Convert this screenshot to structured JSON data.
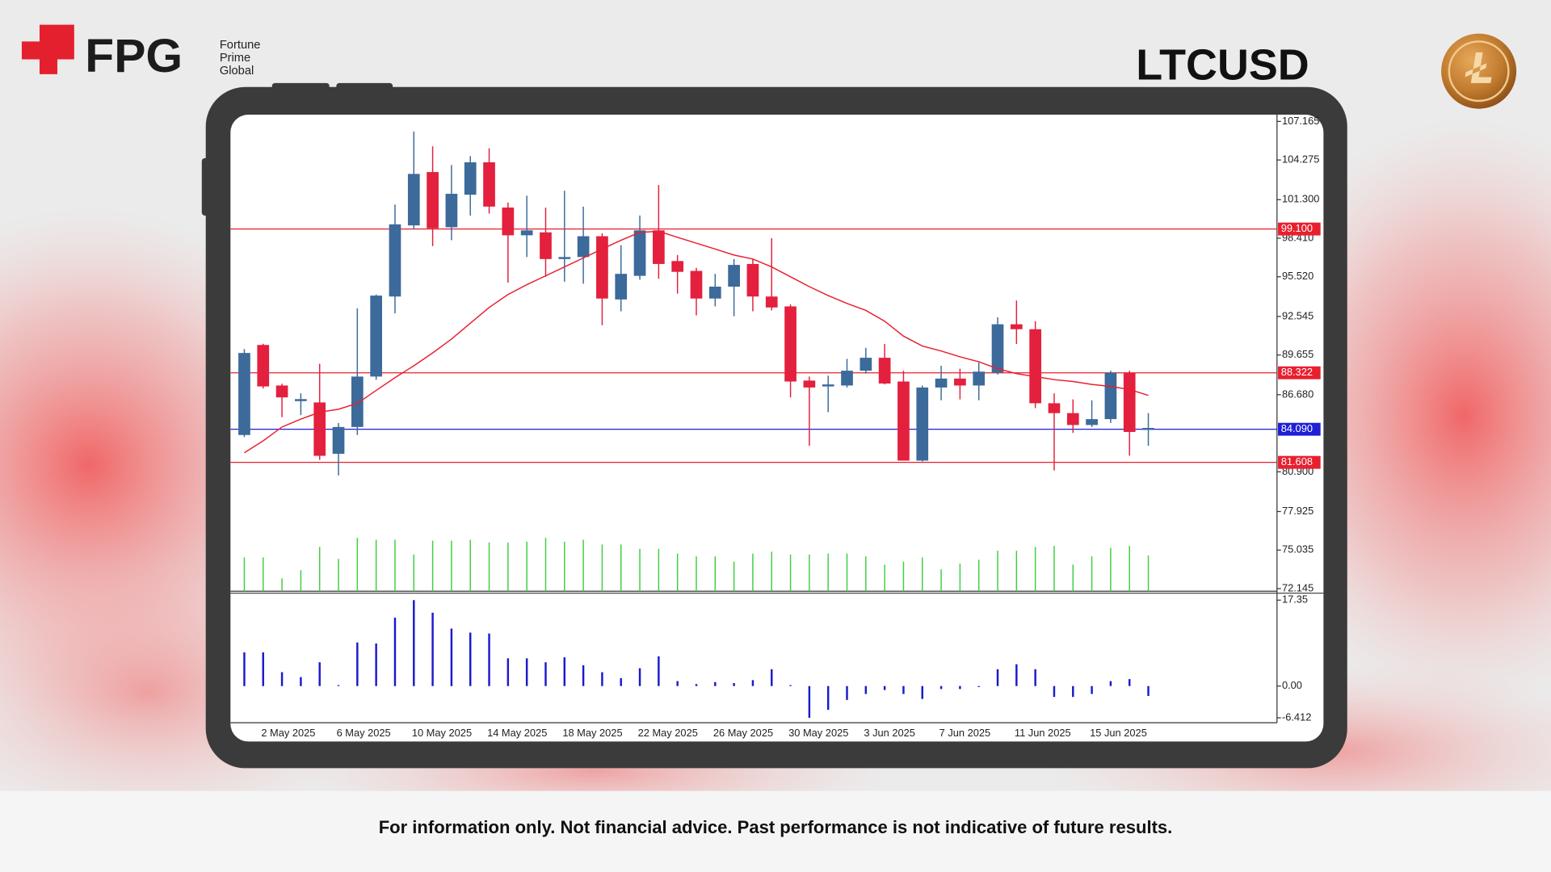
{
  "header": {
    "brand": "FPG",
    "brand_sub": [
      "Fortune",
      "Prime",
      "Global"
    ],
    "symbol": "LTCUSD"
  },
  "chart_data": {
    "type": "candlestick",
    "categories": [
      null,
      "2 May 2025",
      null,
      null,
      null,
      "6 May 2025",
      null,
      null,
      null,
      "10 May 2025",
      null,
      null,
      null,
      "14 May 2025",
      null,
      null,
      null,
      "18 May 2025",
      null,
      null,
      null,
      "22 May 2025",
      null,
      null,
      null,
      "26 May 2025",
      null,
      null,
      null,
      "30 May 2025",
      null,
      null,
      null,
      "3 Jun 2025",
      null,
      null,
      null,
      "7 Jun 2025",
      null,
      null,
      null,
      "11 Jun 2025",
      null,
      null,
      null,
      "15 Jun 2025",
      null,
      null,
      null
    ],
    "open": [
      83.66,
      90.41,
      87.37,
      86.2,
      86.1,
      82.25,
      84.26,
      88.04,
      94.04,
      99.37,
      103.37,
      99.23,
      101.67,
      104.1,
      100.71,
      98.63,
      98.85,
      96.85,
      97.0,
      98.56,
      93.82,
      95.59,
      99.0,
      96.7,
      95.96,
      93.89,
      94.78,
      96.48,
      94.04,
      93.3,
      87.74,
      87.3,
      87.37,
      88.48,
      89.45,
      87.67,
      81.74,
      87.22,
      87.89,
      87.37,
      88.33,
      91.96,
      91.59,
      86.04,
      85.3,
      84.41,
      84.85,
      88.33,
      84.04
    ],
    "high": [
      90.1,
      90.5,
      87.5,
      86.78,
      89.0,
      84.56,
      93.15,
      94.19,
      100.93,
      106.41,
      105.3,
      103.9,
      104.56,
      105.15,
      101.08,
      101.6,
      100.7,
      101.97,
      100.78,
      98.78,
      97.89,
      100.11,
      102.4,
      97.15,
      96.19,
      95.74,
      96.85,
      96.85,
      98.41,
      93.45,
      88.04,
      88.11,
      89.37,
      90.19,
      90.48,
      88.48,
      87.37,
      88.85,
      88.63,
      89.08,
      92.48,
      93.74,
      92.19,
      86.78,
      86.33,
      86.26,
      88.48,
      88.48,
      85.3
    ],
    "low": [
      83.5,
      87.15,
      85.0,
      85.15,
      81.8,
      80.63,
      83.66,
      87.8,
      92.78,
      99.08,
      97.82,
      98.26,
      100.11,
      100.26,
      95.08,
      97.0,
      95.52,
      95.15,
      95.0,
      91.89,
      92.93,
      95.3,
      95.37,
      94.26,
      92.63,
      93.3,
      92.56,
      92.93,
      93.0,
      86.48,
      82.85,
      85.37,
      87.22,
      88.26,
      87.45,
      81.74,
      81.67,
      86.26,
      86.33,
      86.26,
      88.19,
      90.48,
      85.67,
      81.0,
      83.82,
      84.26,
      84.56,
      82.11,
      82.85
    ],
    "close": [
      89.81,
      87.3,
      86.48,
      86.35,
      82.1,
      84.26,
      88.04,
      94.11,
      99.45,
      103.23,
      99.15,
      101.74,
      104.1,
      100.78,
      98.63,
      99.0,
      96.85,
      97.0,
      98.56,
      93.89,
      95.74,
      99.0,
      96.48,
      95.89,
      93.89,
      94.78,
      96.41,
      94.04,
      93.22,
      87.67,
      87.22,
      87.45,
      88.48,
      89.45,
      87.52,
      81.74,
      87.22,
      87.89,
      87.37,
      88.41,
      91.96,
      91.59,
      86.04,
      85.3,
      84.41,
      84.85,
      88.33,
      83.89,
      84.19
    ],
    "up_color": "#3c6a9a",
    "down_color": "#e3203d",
    "ylim": [
      71.95,
      107.67
    ],
    "yticks": [
      107.165,
      104.275,
      {
        "value": 101.3,
        "label": "101.300"
      },
      {
        "value": 98.41,
        "label": "98.410"
      },
      {
        "value": 95.52,
        "label": "95.520"
      },
      92.545,
      89.655,
      {
        "value": 86.68,
        "label": "86.680"
      },
      {
        "value": 80.9,
        "label": "80.900"
      },
      77.925,
      75.035,
      72.145
    ],
    "grid": false,
    "moving_average": {
      "color": "#e8202e",
      "values": [
        82.33,
        83.22,
        84.26,
        84.85,
        85.37,
        85.59,
        86.03,
        87.0,
        87.96,
        88.85,
        89.81,
        90.85,
        92.04,
        93.22,
        94.19,
        94.93,
        95.59,
        96.26,
        96.93,
        97.6,
        98.26,
        98.85,
        98.93,
        98.48,
        98.04,
        97.6,
        97.15,
        96.85,
        96.26,
        95.52,
        94.78,
        94.11,
        93.52,
        93.0,
        92.19,
        91.07,
        90.33,
        89.96,
        89.52,
        89.15,
        88.63,
        88.26,
        88.04,
        87.81,
        87.67,
        87.45,
        87.3,
        87.07,
        86.63
      ]
    },
    "levels": [
      {
        "value": 99.1,
        "label": "99.100",
        "color": "#e8202e"
      },
      {
        "value": 88.322,
        "label": "88.322",
        "color": "#e8202e"
      },
      {
        "value": 84.09,
        "label": "84.090",
        "color": "#1f1fd6"
      },
      {
        "value": 81.608,
        "label": "81.608",
        "color": "#e8202e"
      }
    ],
    "volume": {
      "color": "#3fcf3f",
      "ylim": [
        0,
        100
      ],
      "values": [
        7.1,
        7.1,
        2.7,
        4.4,
        9.3,
        6.8,
        11.2,
        10.8,
        10.8,
        7.7,
        10.6,
        10.6,
        10.8,
        10.2,
        10.2,
        10.4,
        11.2,
        10.4,
        10.8,
        9.8,
        9.8,
        8.9,
        8.9,
        7.9,
        7.3,
        7.3,
        6.2,
        7.9,
        8.3,
        7.7,
        7.7,
        7.9,
        7.9,
        7.3,
        5.6,
        6.2,
        7.1,
        4.6,
        5.8,
        6.6,
        8.5,
        8.5,
        9.3,
        9.5,
        5.6,
        7.3,
        9.1,
        9.5,
        7.5
      ]
    },
    "oscillator": {
      "type": "bar",
      "color": "#1a1acc",
      "ylim": [
        -7.4,
        18.75
      ],
      "yticks": [
        17.35,
        {
          "value": 0,
          "label": "0.00"
        },
        -6.412
      ],
      "values": [
        6.8,
        6.8,
        2.8,
        1.8,
        4.8,
        0.2,
        8.8,
        8.6,
        13.8,
        17.35,
        14.8,
        11.6,
        10.8,
        10.6,
        5.6,
        5.6,
        4.8,
        5.8,
        4.2,
        2.8,
        1.6,
        3.6,
        6.0,
        1.0,
        0.4,
        0.8,
        0.6,
        1.2,
        3.4,
        0.2,
        -6.412,
        -4.8,
        -2.8,
        -1.6,
        -0.8,
        -1.6,
        -2.6,
        -0.6,
        -0.6,
        -0.2,
        3.4,
        4.4,
        3.4,
        -2.2,
        -2.2,
        -1.6,
        1.0,
        1.4,
        -2.0
      ]
    }
  },
  "footer": {
    "disclaimer": "For information only. Not financial advice. Past performance is not indicative of future results."
  }
}
